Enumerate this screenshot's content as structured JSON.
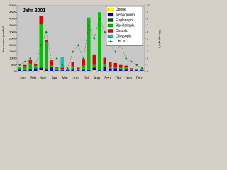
{
  "chart_data": {
    "type": "bar",
    "stacked": true,
    "title": "Jahr 2001",
    "y_label": "Biovolumen (mm³/m³)",
    "y2_label": "Chl. a (mg/m³)",
    "categories": [
      "Jan",
      null,
      "Feb",
      null,
      "Mrz",
      null,
      "Apr",
      null,
      "Mai",
      null,
      "Jun",
      null,
      "Jul",
      null,
      "Aug",
      null,
      "Sep",
      null,
      "Okt",
      null,
      "Nov",
      null,
      "Dez",
      null
    ],
    "series": [
      {
        "name": "Übrige",
        "color": "#ffff00",
        "values": [
          50,
          50,
          50,
          50,
          100,
          50,
          50,
          50,
          50,
          50,
          50,
          50,
          50,
          50,
          100,
          50,
          50,
          50,
          50,
          50,
          50,
          50,
          50,
          50
        ]
      },
      {
        "name": "Mesodinium",
        "color": "#0000c0",
        "values": [
          100,
          50,
          100,
          200,
          200,
          100,
          300,
          50,
          50,
          50,
          100,
          50,
          100,
          50,
          200,
          50,
          300,
          200,
          200,
          100,
          100,
          50,
          50,
          50
        ]
      },
      {
        "name": "Euglenoph.",
        "color": "#006000",
        "values": [
          0,
          0,
          50,
          0,
          0,
          50,
          0,
          0,
          0,
          0,
          50,
          0,
          0,
          0,
          0,
          0,
          0,
          0,
          0,
          50,
          0,
          0,
          0,
          0
        ]
      },
      {
        "name": "Bacillarioph.",
        "color": "#00c000",
        "values": [
          200,
          300,
          400,
          200,
          3300,
          2000,
          100,
          200,
          100,
          50,
          200,
          100,
          300,
          4000,
          200,
          4400,
          200,
          100,
          100,
          100,
          200,
          100,
          50,
          50
        ]
      },
      {
        "name": "Dinoph.",
        "color": "#e00000",
        "values": [
          0,
          100,
          300,
          100,
          600,
          200,
          400,
          50,
          100,
          50,
          300,
          100,
          500,
          0,
          800,
          0,
          500,
          400,
          300,
          200,
          100,
          50,
          50,
          0
        ]
      },
      {
        "name": "Chrysoph.",
        "color": "#00c8c8",
        "values": [
          0,
          0,
          0,
          0,
          0,
          0,
          0,
          0,
          800,
          0,
          0,
          0,
          0,
          0,
          0,
          0,
          0,
          0,
          0,
          0,
          0,
          0,
          0,
          0
        ]
      },
      {
        "name": "Chl. a",
        "color": "#008000",
        "axis": "y2",
        "type": "line",
        "values": [
          1,
          1.5,
          2,
          1,
          4,
          6,
          1.5,
          2,
          1,
          0.5,
          3,
          4,
          2,
          7,
          5,
          8,
          6,
          4,
          3,
          4,
          2,
          1.5,
          1,
          0.5
        ]
      }
    ],
    "ylim": [
      0,
      5000
    ],
    "yticks": [
      0,
      500,
      1000,
      1500,
      2000,
      2500,
      3000,
      3500,
      4000,
      4500,
      5000
    ],
    "y2lim": [
      0,
      10
    ],
    "y2ticks": [
      0,
      1,
      2,
      3,
      4,
      5,
      6,
      7,
      8,
      9,
      10
    ],
    "legend": "upper-right"
  }
}
